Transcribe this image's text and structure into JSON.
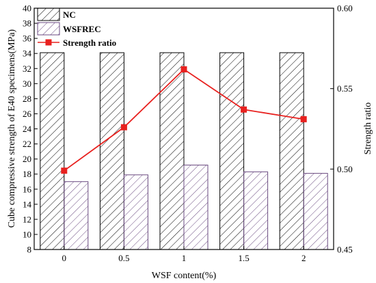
{
  "chart_data": {
    "type": "bar",
    "categories": [
      "0",
      "0.5",
      "1",
      "1.5",
      "2"
    ],
    "series": [
      {
        "name": "NC",
        "axis": "left",
        "values": [
          34.1,
          34.1,
          34.1,
          34.1,
          34.1
        ],
        "color": "#000000",
        "fill": "hatch"
      },
      {
        "name": "WSFREC",
        "axis": "left",
        "values": [
          17.0,
          17.9,
          19.2,
          18.3,
          18.1
        ],
        "color": "#6a4a80",
        "fill": "hatch"
      }
    ],
    "line_series": [
      {
        "name": "Strength ratio",
        "axis": "right",
        "type": "line",
        "marker": "square",
        "color": "#e8211f",
        "values": [
          0.499,
          0.526,
          0.562,
          0.537,
          0.531
        ]
      }
    ],
    "xlabel": "WSF content(%)",
    "ylabel": "Cube compressive strength of E40 specimens(MPa)",
    "y2label": "Strength ratio",
    "ylim": [
      8,
      40
    ],
    "y2lim": [
      0.45,
      0.6
    ],
    "yticks": [
      "8",
      "10",
      "12",
      "14",
      "16",
      "18",
      "20",
      "22",
      "24",
      "26",
      "28",
      "30",
      "32",
      "34",
      "36",
      "38",
      "40"
    ],
    "y2ticks": [
      "0.45",
      "0.50",
      "0.55",
      "0.60"
    ],
    "legend": {
      "position": "top-left",
      "entries": [
        "NC",
        "WSFREC",
        "Strength ratio"
      ]
    },
    "grid": false
  }
}
